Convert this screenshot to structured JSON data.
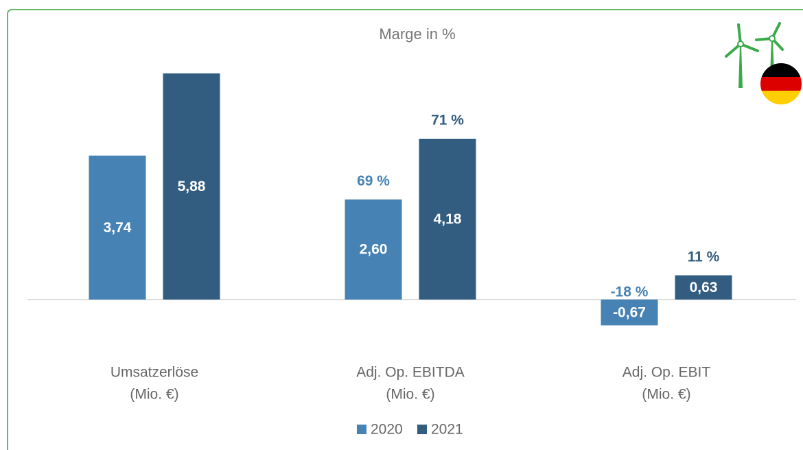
{
  "chart_data": {
    "type": "bar",
    "title": "Marge in %",
    "categories": [
      [
        "Umsatzerlöse",
        "(Mio. €)"
      ],
      [
        "Adj. Op. EBITDA",
        "(Mio. €)"
      ],
      [
        "Adj. Op. EBIT",
        "(Mio. €)"
      ]
    ],
    "series": [
      {
        "name": "2020",
        "color": "#4682b4",
        "values": [
          3.74,
          2.6,
          -0.67
        ],
        "value_labels": [
          "3,74",
          "2,60",
          "-0,67"
        ],
        "margins": [
          null,
          69,
          -18
        ],
        "margin_labels": [
          null,
          "69 %",
          "-18 %"
        ]
      },
      {
        "name": "2021",
        "color": "#335d80",
        "values": [
          5.88,
          4.18,
          0.63
        ],
        "value_labels": [
          "5,88",
          "4,18",
          "0,63"
        ],
        "margins": [
          null,
          71,
          11
        ],
        "margin_labels": [
          null,
          "71 %",
          "11 %"
        ]
      }
    ],
    "ylim": [
      -1.5,
      7
    ],
    "legend": "bottom"
  }
}
